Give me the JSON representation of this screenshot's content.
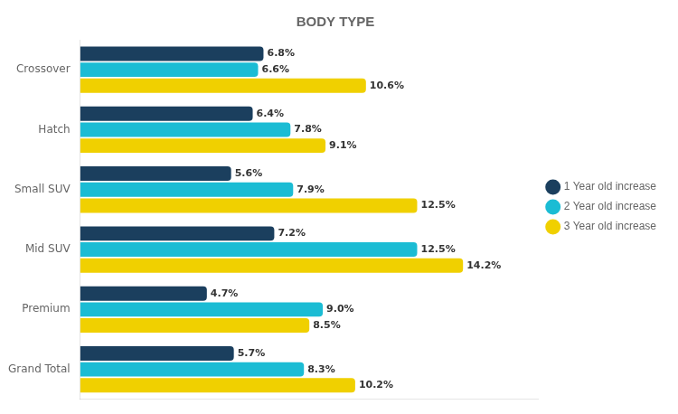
{
  "chart_data": {
    "type": "bar",
    "orientation": "horizontal",
    "title": "BODY TYPE",
    "categories": [
      "Crossover",
      "Hatch",
      "Small SUV",
      "Mid SUV",
      "Premium",
      "Grand Total"
    ],
    "series": [
      {
        "name": "1 Year old increase",
        "color": "#1b3f5e",
        "values": [
          6.8,
          6.4,
          5.6,
          7.2,
          4.7,
          5.7
        ],
        "value_labels": [
          "6.8%",
          "6.4%",
          "5.6%",
          "7.2%",
          "4.7%",
          "5.7%"
        ]
      },
      {
        "name": "2 Year old increase",
        "color": "#1bbcd4",
        "values": [
          6.6,
          7.8,
          7.9,
          12.5,
          9.0,
          8.3
        ],
        "value_labels": [
          "6.6%",
          "7.8%",
          "7.9%",
          "12.5%",
          "9.0%",
          "8.3%"
        ]
      },
      {
        "name": "3 Year old increase",
        "color": "#f0d000",
        "values": [
          10.6,
          9.1,
          12.5,
          14.2,
          8.5,
          10.2
        ],
        "value_labels": [
          "10.6%",
          "9.1%",
          "12.5%",
          "14.2%",
          "8.5%",
          "10.2%"
        ]
      }
    ],
    "xlim": [
      0,
      17
    ],
    "grid": false,
    "legend": "right",
    "data_labels": true,
    "tick_labels": "y"
  }
}
